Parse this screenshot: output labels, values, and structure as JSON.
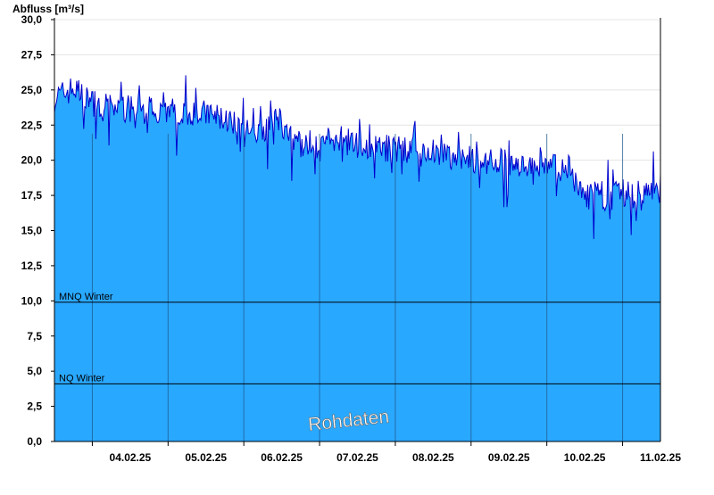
{
  "chart_data": {
    "type": "area",
    "ylabel": "Abfluss [m³/s]",
    "ylim": [
      0,
      30
    ],
    "yticks": [
      "0,0",
      "2,5",
      "5,0",
      "7,5",
      "10,0",
      "12,5",
      "15,0",
      "17,5",
      "20,0",
      "22,5",
      "25,0",
      "27,5",
      "30,0"
    ],
    "ytick_values": [
      0,
      2.5,
      5,
      7.5,
      10,
      12.5,
      15,
      17.5,
      20,
      22.5,
      25,
      27.5,
      30
    ],
    "xlim_days": [
      "03.02.25 12:00",
      "11.02.25 12:00"
    ],
    "xticks": [
      "04.02.25",
      "05.02.25",
      "06.02.25",
      "07.02.25",
      "08.02.25",
      "09.02.25",
      "10.02.25",
      "11.02.25"
    ],
    "grid": true,
    "fill_color": "#29A8FF",
    "line_color": "#0000CC",
    "reference_lines": [
      {
        "label": "MNQ Winter",
        "value": 9.9
      },
      {
        "label": "NQ Winter",
        "value": 4.1
      }
    ],
    "watermark": "Rohdaten",
    "series": [
      {
        "x": [
          "03.02.25 12:00",
          "03.02.25 18:00",
          "04.02.25 00:00",
          "04.02.25 06:00",
          "04.02.25 12:00",
          "04.02.25 18:00",
          "05.02.25 00:00",
          "05.02.25 06:00",
          "05.02.25 12:00",
          "05.02.25 18:00",
          "06.02.25 00:00",
          "06.02.25 06:00",
          "06.02.25 10:00",
          "06.02.25 14:00",
          "06.02.25 18:00",
          "07.02.25 00:00",
          "07.02.25 06:00",
          "07.02.25 12:00",
          "07.02.25 18:00",
          "08.02.25 00:00",
          "08.02.25 06:00",
          "08.02.25 12:00",
          "08.02.25 18:00",
          "09.02.25 00:00",
          "09.02.25 06:00",
          "09.02.25 12:00",
          "09.02.25 18:00",
          "10.02.25 00:00",
          "10.02.25 06:00",
          "10.02.25 12:00",
          "10.02.25 18:00",
          "11.02.25 00:00",
          "11.02.25 06:00",
          "11.02.25 12:00"
        ],
        "y": [
          24.3,
          25.0,
          24.0,
          23.8,
          23.5,
          23.6,
          23.5,
          23.3,
          23.2,
          22.8,
          22.3,
          21.8,
          23.5,
          21.5,
          21.0,
          21.2,
          21.4,
          21.0,
          20.8,
          20.7,
          20.6,
          20.0,
          20.2,
          20.0,
          19.9,
          19.8,
          19.6,
          19.4,
          19.3,
          17.3,
          17.4,
          17.5,
          17.4,
          17.8
        ]
      }
    ]
  }
}
